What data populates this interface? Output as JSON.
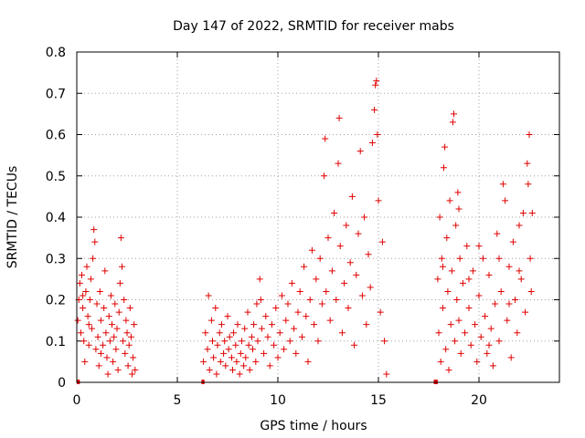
{
  "chart_data": {
    "type": "scatter",
    "title": "Day 147 of 2022, SRMTID for receiver mabs",
    "xlabel": "GPS time / hours",
    "ylabel": "SRMTID / TECUs",
    "xlim": [
      0,
      24
    ],
    "ylim": [
      0,
      0.8
    ],
    "xticks": [
      0,
      5,
      10,
      15,
      20
    ],
    "xtick_labels": [
      "0",
      "5",
      "10",
      "15",
      "20"
    ],
    "yticks": [
      0,
      0.1,
      0.2,
      0.3,
      0.4,
      0.5,
      0.6,
      0.7,
      0.8
    ],
    "ytick_labels": [
      "0",
      "0.1",
      "0.2",
      "0.3",
      "0.4",
      "0.5",
      "0.6",
      "0.7",
      "0.8"
    ],
    "grid": true,
    "marker": "plus",
    "color": "#e00000",
    "series": [
      {
        "name": "SRMTID",
        "points": [
          [
            0.05,
            0.15
          ],
          [
            0.1,
            0.2
          ],
          [
            0.15,
            0.24
          ],
          [
            0.2,
            0.12
          ],
          [
            0.25,
            0.26
          ],
          [
            0.3,
            0.18
          ],
          [
            0.35,
            0.1
          ],
          [
            0.4,
            0.05
          ],
          [
            0.45,
            0.22
          ],
          [
            0.5,
            0.28
          ],
          [
            0.55,
            0.16
          ],
          [
            0.6,
            0.09
          ],
          [
            0.65,
            0.2
          ],
          [
            0.7,
            0.25
          ],
          [
            0.75,
            0.13
          ],
          [
            0.8,
            0.3
          ],
          [
            0.85,
            0.37
          ],
          [
            0.9,
            0.34
          ],
          [
            0.95,
            0.08
          ],
          [
            1.0,
            0.19
          ],
          [
            1.05,
            0.11
          ],
          [
            1.1,
            0.04
          ],
          [
            1.15,
            0.22
          ],
          [
            1.2,
            0.15
          ],
          [
            1.3,
            0.09
          ],
          [
            1.35,
            0.18
          ],
          [
            1.4,
            0.27
          ],
          [
            1.45,
            0.12
          ],
          [
            1.5,
            0.06
          ],
          [
            1.55,
            0.02
          ],
          [
            1.6,
            0.16
          ],
          [
            1.65,
            0.1
          ],
          [
            1.7,
            0.21
          ],
          [
            1.75,
            0.14
          ],
          [
            1.8,
            0.05
          ],
          [
            1.85,
            0.11
          ],
          [
            1.9,
            0.19
          ],
          [
            1.95,
            0.08
          ],
          [
            2.0,
            0.13
          ],
          [
            2.05,
            0.03
          ],
          [
            2.1,
            0.17
          ],
          [
            2.15,
            0.24
          ],
          [
            2.2,
            0.35
          ],
          [
            2.25,
            0.28
          ],
          [
            2.3,
            0.1
          ],
          [
            2.35,
            0.2
          ],
          [
            2.4,
            0.07
          ],
          [
            2.45,
            0.15
          ],
          [
            2.5,
            0.12
          ],
          [
            2.55,
            0.04
          ],
          [
            2.6,
            0.09
          ],
          [
            2.65,
            0.18
          ],
          [
            2.7,
            0.11
          ],
          [
            2.75,
            0.02
          ],
          [
            2.8,
            0.06
          ],
          [
            2.85,
            0.14
          ],
          [
            2.9,
            0.03
          ],
          [
            0.3,
            0.21
          ],
          [
            0.6,
            0.14
          ],
          [
            1.2,
            0.07
          ],
          [
            6.3,
            0.05
          ],
          [
            6.4,
            0.12
          ],
          [
            6.5,
            0.08
          ],
          [
            6.55,
            0.21
          ],
          [
            6.6,
            0.03
          ],
          [
            6.7,
            0.15
          ],
          [
            6.75,
            0.1
          ],
          [
            6.8,
            0.06
          ],
          [
            6.9,
            0.18
          ],
          [
            6.95,
            0.02
          ],
          [
            7.0,
            0.09
          ],
          [
            7.1,
            0.12
          ],
          [
            7.15,
            0.05
          ],
          [
            7.2,
            0.14
          ],
          [
            7.3,
            0.07
          ],
          [
            7.35,
            0.1
          ],
          [
            7.4,
            0.04
          ],
          [
            7.5,
            0.16
          ],
          [
            7.55,
            0.08
          ],
          [
            7.6,
            0.11
          ],
          [
            7.7,
            0.06
          ],
          [
            7.75,
            0.03
          ],
          [
            7.8,
            0.12
          ],
          [
            7.9,
            0.09
          ],
          [
            7.95,
            0.05
          ],
          [
            8.0,
            0.14
          ],
          [
            8.1,
            0.02
          ],
          [
            8.15,
            0.07
          ],
          [
            8.2,
            0.1
          ],
          [
            8.3,
            0.04
          ],
          [
            8.35,
            0.13
          ],
          [
            8.4,
            0.06
          ],
          [
            8.5,
            0.17
          ],
          [
            8.55,
            0.09
          ],
          [
            8.6,
            0.03
          ],
          [
            8.7,
            0.11
          ],
          [
            8.75,
            0.08
          ],
          [
            8.8,
            0.14
          ],
          [
            8.9,
            0.05
          ],
          [
            8.95,
            0.19
          ],
          [
            9.0,
            0.1
          ],
          [
            9.1,
            0.25
          ],
          [
            9.15,
            0.2
          ],
          [
            9.2,
            0.13
          ],
          [
            9.3,
            0.07
          ],
          [
            9.4,
            0.16
          ],
          [
            9.5,
            0.11
          ],
          [
            9.6,
            0.04
          ],
          [
            9.7,
            0.14
          ],
          [
            9.8,
            0.09
          ],
          [
            9.9,
            0.18
          ],
          [
            10.0,
            0.06
          ],
          [
            10.1,
            0.12
          ],
          [
            10.2,
            0.21
          ],
          [
            10.3,
            0.08
          ],
          [
            10.4,
            0.15
          ],
          [
            10.5,
            0.19
          ],
          [
            10.6,
            0.1
          ],
          [
            10.7,
            0.24
          ],
          [
            10.8,
            0.13
          ],
          [
            10.9,
            0.07
          ],
          [
            11.0,
            0.17
          ],
          [
            11.1,
            0.22
          ],
          [
            11.2,
            0.11
          ],
          [
            11.3,
            0.28
          ],
          [
            11.4,
            0.16
          ],
          [
            11.5,
            0.05
          ],
          [
            11.6,
            0.2
          ],
          [
            11.7,
            0.32
          ],
          [
            11.8,
            0.14
          ],
          [
            11.9,
            0.25
          ],
          [
            12.0,
            0.1
          ],
          [
            12.1,
            0.3
          ],
          [
            12.2,
            0.19
          ],
          [
            12.3,
            0.5
          ],
          [
            12.35,
            0.59
          ],
          [
            12.4,
            0.22
          ],
          [
            12.5,
            0.35
          ],
          [
            12.6,
            0.15
          ],
          [
            12.7,
            0.27
          ],
          [
            12.8,
            0.41
          ],
          [
            12.9,
            0.2
          ],
          [
            13.0,
            0.53
          ],
          [
            13.05,
            0.64
          ],
          [
            13.1,
            0.33
          ],
          [
            13.2,
            0.12
          ],
          [
            13.3,
            0.24
          ],
          [
            13.4,
            0.38
          ],
          [
            13.5,
            0.18
          ],
          [
            13.6,
            0.29
          ],
          [
            13.7,
            0.45
          ],
          [
            13.8,
            0.09
          ],
          [
            13.9,
            0.26
          ],
          [
            14.0,
            0.36
          ],
          [
            14.1,
            0.56
          ],
          [
            14.2,
            0.21
          ],
          [
            14.3,
            0.4
          ],
          [
            14.4,
            0.14
          ],
          [
            14.5,
            0.31
          ],
          [
            14.6,
            0.23
          ],
          [
            14.7,
            0.58
          ],
          [
            14.8,
            0.66
          ],
          [
            14.85,
            0.72
          ],
          [
            14.9,
            0.73
          ],
          [
            14.95,
            0.6
          ],
          [
            15.0,
            0.44
          ],
          [
            15.1,
            0.17
          ],
          [
            15.2,
            0.34
          ],
          [
            15.3,
            0.1
          ],
          [
            15.4,
            0.02
          ],
          [
            17.95,
            0.25
          ],
          [
            18.0,
            0.12
          ],
          [
            18.05,
            0.4
          ],
          [
            18.1,
            0.05
          ],
          [
            18.15,
            0.3
          ],
          [
            18.2,
            0.18
          ],
          [
            18.25,
            0.52
          ],
          [
            18.3,
            0.57
          ],
          [
            18.35,
            0.08
          ],
          [
            18.4,
            0.35
          ],
          [
            18.45,
            0.22
          ],
          [
            18.5,
            0.03
          ],
          [
            18.55,
            0.44
          ],
          [
            18.6,
            0.14
          ],
          [
            18.65,
            0.27
          ],
          [
            18.7,
            0.63
          ],
          [
            18.75,
            0.65
          ],
          [
            18.8,
            0.1
          ],
          [
            18.85,
            0.38
          ],
          [
            18.9,
            0.2
          ],
          [
            18.95,
            0.46
          ],
          [
            19.0,
            0.15
          ],
          [
            19.05,
            0.3
          ],
          [
            19.1,
            0.07
          ],
          [
            19.2,
            0.24
          ],
          [
            19.3,
            0.12
          ],
          [
            19.4,
            0.33
          ],
          [
            19.5,
            0.18
          ],
          [
            19.6,
            0.09
          ],
          [
            19.7,
            0.27
          ],
          [
            19.8,
            0.14
          ],
          [
            19.9,
            0.05
          ],
          [
            20.0,
            0.21
          ],
          [
            20.1,
            0.11
          ],
          [
            20.2,
            0.3
          ],
          [
            20.3,
            0.16
          ],
          [
            20.4,
            0.07
          ],
          [
            20.5,
            0.26
          ],
          [
            20.6,
            0.13
          ],
          [
            20.7,
            0.04
          ],
          [
            20.8,
            0.19
          ],
          [
            20.9,
            0.36
          ],
          [
            21.0,
            0.1
          ],
          [
            21.1,
            0.22
          ],
          [
            21.2,
            0.48
          ],
          [
            21.3,
            0.44
          ],
          [
            21.4,
            0.15
          ],
          [
            21.5,
            0.28
          ],
          [
            21.6,
            0.06
          ],
          [
            21.7,
            0.34
          ],
          [
            21.8,
            0.2
          ],
          [
            21.9,
            0.12
          ],
          [
            22.0,
            0.38
          ],
          [
            22.1,
            0.25
          ],
          [
            22.2,
            0.41
          ],
          [
            22.3,
            0.17
          ],
          [
            22.4,
            0.53
          ],
          [
            22.45,
            0.48
          ],
          [
            22.5,
            0.6
          ],
          [
            22.55,
            0.3
          ],
          [
            22.6,
            0.22
          ],
          [
            22.65,
            0.41
          ],
          [
            18.2,
            0.28
          ],
          [
            19.0,
            0.42
          ],
          [
            20.5,
            0.09
          ],
          [
            21.5,
            0.19
          ],
          [
            22.0,
            0.27
          ],
          [
            20.0,
            0.33
          ],
          [
            19.5,
            0.25
          ],
          [
            21.0,
            0.3
          ]
        ]
      }
    ],
    "bars_at_zero": [
      {
        "x_start": 0.0,
        "x_end": 0.15
      },
      {
        "x_start": 6.2,
        "x_end": 6.35
      },
      {
        "x_start": 17.75,
        "x_end": 17.95
      }
    ]
  }
}
